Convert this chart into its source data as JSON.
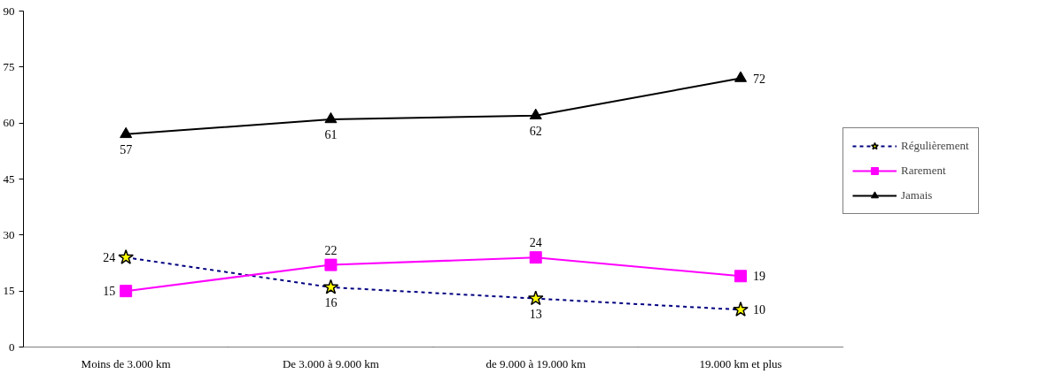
{
  "chart_data": {
    "type": "line",
    "categories": [
      "Moins de 3.000 km",
      "De 3.000 à 9.000 km",
      "de 9.000 à 19.000 km",
      "19.000 km et plus"
    ],
    "series": [
      {
        "name": "Régulièrement",
        "color": "#000080",
        "values": [
          24,
          16,
          13,
          10
        ],
        "line_style": "dashed",
        "marker": "star"
      },
      {
        "name": "Rarement",
        "color": "#ff00ff",
        "values": [
          15,
          22,
          24,
          19
        ],
        "line_style": "solid",
        "marker": "square"
      },
      {
        "name": "Jamais",
        "color": "#000000",
        "values": [
          57,
          61,
          62,
          72
        ],
        "line_style": "solid",
        "marker": "triangle"
      }
    ],
    "ylim": [
      0,
      90
    ],
    "yticks": [
      0,
      15,
      30,
      45,
      60,
      75,
      90
    ],
    "grid": false,
    "legend": "right",
    "data_labels": true
  }
}
